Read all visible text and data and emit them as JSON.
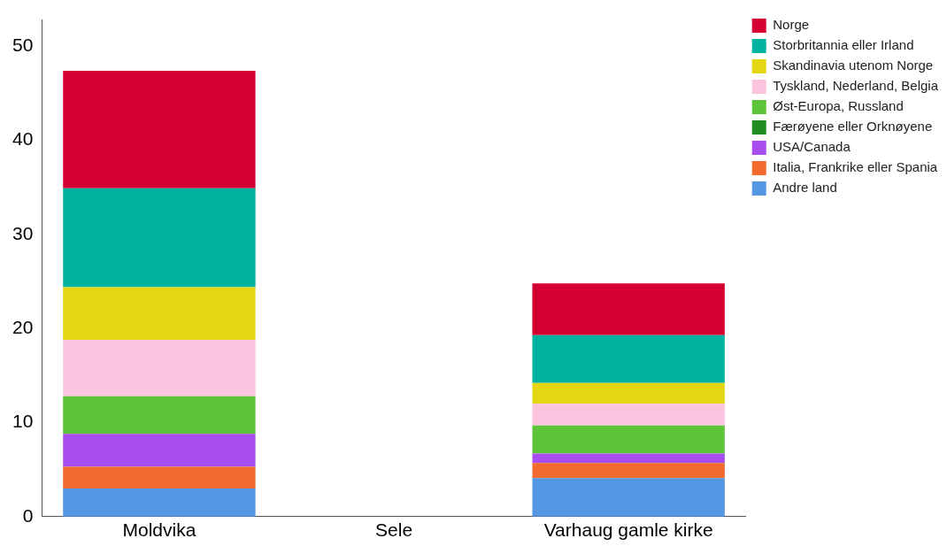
{
  "chart_data": {
    "type": "bar",
    "stacked": true,
    "categories": [
      "Moldvika",
      "Sele",
      "Varhaug gamle kirke"
    ],
    "series": [
      {
        "name": "Andre land",
        "color": "#5597e2",
        "values": [
          3.0,
          0,
          4.1
        ]
      },
      {
        "name": "Italia, Frankrike eller Spania",
        "color": "#f26b2e",
        "values": [
          2.3,
          0,
          1.6
        ]
      },
      {
        "name": "USA/Canada",
        "color": "#a84ef0",
        "values": [
          3.5,
          0,
          1.0
        ]
      },
      {
        "name": "Færøyene eller Orknøyene",
        "color": "#228b22",
        "values": [
          0,
          0,
          0
        ]
      },
      {
        "name": "Øst-Europa, Russland",
        "color": "#5ec43a",
        "values": [
          4.0,
          0,
          3.0
        ]
      },
      {
        "name": "Tyskland, Nederland, Belgia",
        "color": "#fdc4e0",
        "values": [
          6.0,
          0,
          2.3
        ]
      },
      {
        "name": "Skandinavia utenom Norge",
        "color": "#e3d612",
        "values": [
          5.6,
          0,
          2.2
        ]
      },
      {
        "name": "Storbritannia eller Irland",
        "color": "#00b2a0",
        "values": [
          10.5,
          0,
          5.1
        ]
      },
      {
        "name": "Norge",
        "color": "#d50032",
        "values": [
          12.5,
          0,
          5.5
        ]
      }
    ],
    "ylim": [
      0,
      52.8
    ],
    "yticks": [
      0,
      10,
      20,
      30,
      40,
      50
    ],
    "grid": false,
    "legend": "top right"
  }
}
